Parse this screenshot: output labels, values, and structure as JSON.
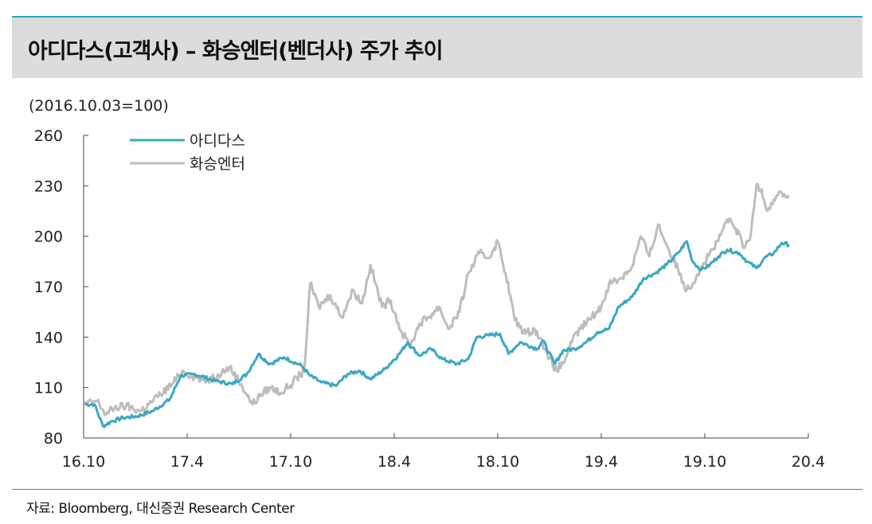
{
  "header": {
    "title": "아디다스(고객사) – 화승엔터(벤더사) 주가 추이"
  },
  "footer": {
    "source": "자료: Bloomberg, 대신증권 Research Center"
  },
  "colors": {
    "accent": "#2aa6b8",
    "adidas": "#3ba7c3",
    "hwaseung": "#bdbdbd"
  },
  "chart_data": {
    "type": "line",
    "title": "",
    "subtitle": "(2016.10.03=100)",
    "xlabel": "",
    "ylabel": "",
    "ylim": [
      80,
      260
    ],
    "yticks": [
      80,
      110,
      140,
      170,
      200,
      230,
      260
    ],
    "xlim": [
      "2016-10",
      "2020-04"
    ],
    "xtick_labels": [
      "16.10",
      "17.4",
      "17.10",
      "18.4",
      "18.10",
      "19.4",
      "19.10",
      "20.4"
    ],
    "grid": false,
    "legend_position": "top-left",
    "series": [
      {
        "name": "아디다스",
        "points": [
          [
            "2016-10-03",
            100
          ],
          [
            "2016-10-20",
            100
          ],
          [
            "2016-11-05",
            87
          ],
          [
            "2016-11-20",
            90
          ],
          [
            "2016-12-10",
            92
          ],
          [
            "2017-01-05",
            93
          ],
          [
            "2017-02-01",
            96
          ],
          [
            "2017-03-01",
            103
          ],
          [
            "2017-03-20",
            117
          ],
          [
            "2017-04-15",
            118
          ],
          [
            "2017-05-20",
            114
          ],
          [
            "2017-06-20",
            112
          ],
          [
            "2017-07-15",
            118
          ],
          [
            "2017-08-05",
            130
          ],
          [
            "2017-08-25",
            124
          ],
          [
            "2017-09-20",
            128
          ],
          [
            "2017-10-20",
            123
          ],
          [
            "2017-11-05",
            117
          ],
          [
            "2017-11-25",
            113
          ],
          [
            "2017-12-20",
            111
          ],
          [
            "2018-01-10",
            118
          ],
          [
            "2018-02-01",
            120
          ],
          [
            "2018-02-20",
            115
          ],
          [
            "2018-03-15",
            121
          ],
          [
            "2018-04-10",
            130
          ],
          [
            "2018-04-25",
            137
          ],
          [
            "2018-05-15",
            129
          ],
          [
            "2018-06-05",
            133
          ],
          [
            "2018-06-25",
            127
          ],
          [
            "2018-07-20",
            124
          ],
          [
            "2018-08-10",
            127
          ],
          [
            "2018-08-25",
            140
          ],
          [
            "2018-09-15",
            141
          ],
          [
            "2018-10-05",
            142
          ],
          [
            "2018-10-20",
            130
          ],
          [
            "2018-11-10",
            137
          ],
          [
            "2018-12-10",
            133
          ],
          [
            "2018-12-20",
            138
          ],
          [
            "2019-01-10",
            124
          ],
          [
            "2019-01-25",
            132
          ],
          [
            "2019-02-15",
            133
          ],
          [
            "2019-03-05",
            137
          ],
          [
            "2019-03-25",
            143
          ],
          [
            "2019-04-15",
            145
          ],
          [
            "2019-05-01",
            158
          ],
          [
            "2019-05-25",
            164
          ],
          [
            "2019-06-15",
            175
          ],
          [
            "2019-07-05",
            178
          ],
          [
            "2019-07-25",
            183
          ],
          [
            "2019-08-15",
            190
          ],
          [
            "2019-08-30",
            197
          ],
          [
            "2019-09-10",
            185
          ],
          [
            "2019-09-25",
            180
          ],
          [
            "2019-10-10",
            183
          ],
          [
            "2019-10-25",
            188
          ],
          [
            "2019-11-10",
            192
          ],
          [
            "2019-12-01",
            190
          ],
          [
            "2019-12-15",
            185
          ],
          [
            "2020-01-01",
            181
          ],
          [
            "2020-01-15",
            187
          ],
          [
            "2020-02-01",
            190
          ],
          [
            "2020-02-15",
            196
          ],
          [
            "2020-02-28",
            195
          ]
        ]
      },
      {
        "name": "화승엔터",
        "points": [
          [
            "2016-10-03",
            100
          ],
          [
            "2016-10-25",
            102
          ],
          [
            "2016-11-10",
            94
          ],
          [
            "2016-11-25",
            98
          ],
          [
            "2016-12-15",
            99
          ],
          [
            "2017-01-10",
            96
          ],
          [
            "2017-01-25",
            100
          ],
          [
            "2017-02-15",
            106
          ],
          [
            "2017-03-05",
            112
          ],
          [
            "2017-03-25",
            120
          ],
          [
            "2017-04-10",
            117
          ],
          [
            "2017-05-05",
            114
          ],
          [
            "2017-05-25",
            118
          ],
          [
            "2017-06-15",
            122
          ],
          [
            "2017-07-05",
            112
          ],
          [
            "2017-07-25",
            100
          ],
          [
            "2017-08-10",
            106
          ],
          [
            "2017-08-25",
            110
          ],
          [
            "2017-09-15",
            107
          ],
          [
            "2017-10-05",
            113
          ],
          [
            "2017-10-25",
            120
          ],
          [
            "2017-11-05",
            172
          ],
          [
            "2017-11-20",
            158
          ],
          [
            "2017-12-10",
            165
          ],
          [
            "2017-12-30",
            152
          ],
          [
            "2018-01-20",
            168
          ],
          [
            "2018-02-05",
            160
          ],
          [
            "2018-02-20",
            183
          ],
          [
            "2018-03-10",
            158
          ],
          [
            "2018-03-25",
            162
          ],
          [
            "2018-04-15",
            142
          ],
          [
            "2018-04-30",
            135
          ],
          [
            "2018-05-15",
            148
          ],
          [
            "2018-06-01",
            152
          ],
          [
            "2018-06-20",
            158
          ],
          [
            "2018-07-05",
            145
          ],
          [
            "2018-07-25",
            155
          ],
          [
            "2018-08-10",
            178
          ],
          [
            "2018-08-30",
            190
          ],
          [
            "2018-09-15",
            187
          ],
          [
            "2018-10-01",
            197
          ],
          [
            "2018-10-15",
            178
          ],
          [
            "2018-11-01",
            150
          ],
          [
            "2018-11-20",
            142
          ],
          [
            "2018-12-05",
            145
          ],
          [
            "2018-12-25",
            133
          ],
          [
            "2019-01-10",
            120
          ],
          [
            "2019-01-25",
            124
          ],
          [
            "2019-02-10",
            137
          ],
          [
            "2019-02-25",
            145
          ],
          [
            "2019-03-15",
            152
          ],
          [
            "2019-04-01",
            158
          ],
          [
            "2019-04-15",
            172
          ],
          [
            "2019-05-05",
            175
          ],
          [
            "2019-05-25",
            182
          ],
          [
            "2019-06-10",
            200
          ],
          [
            "2019-06-25",
            188
          ],
          [
            "2019-07-10",
            207
          ],
          [
            "2019-07-25",
            195
          ],
          [
            "2019-08-15",
            180
          ],
          [
            "2019-08-30",
            168
          ],
          [
            "2019-09-10",
            172
          ],
          [
            "2019-09-25",
            182
          ],
          [
            "2019-10-10",
            190
          ],
          [
            "2019-10-25",
            197
          ],
          [
            "2019-11-10",
            210
          ],
          [
            "2019-11-25",
            205
          ],
          [
            "2019-12-10",
            193
          ],
          [
            "2019-12-20",
            198
          ],
          [
            "2020-01-01",
            231
          ],
          [
            "2020-01-10",
            228
          ],
          [
            "2020-01-20",
            215
          ],
          [
            "2020-02-01",
            222
          ],
          [
            "2020-02-15",
            226
          ],
          [
            "2020-02-28",
            223
          ]
        ]
      }
    ]
  }
}
